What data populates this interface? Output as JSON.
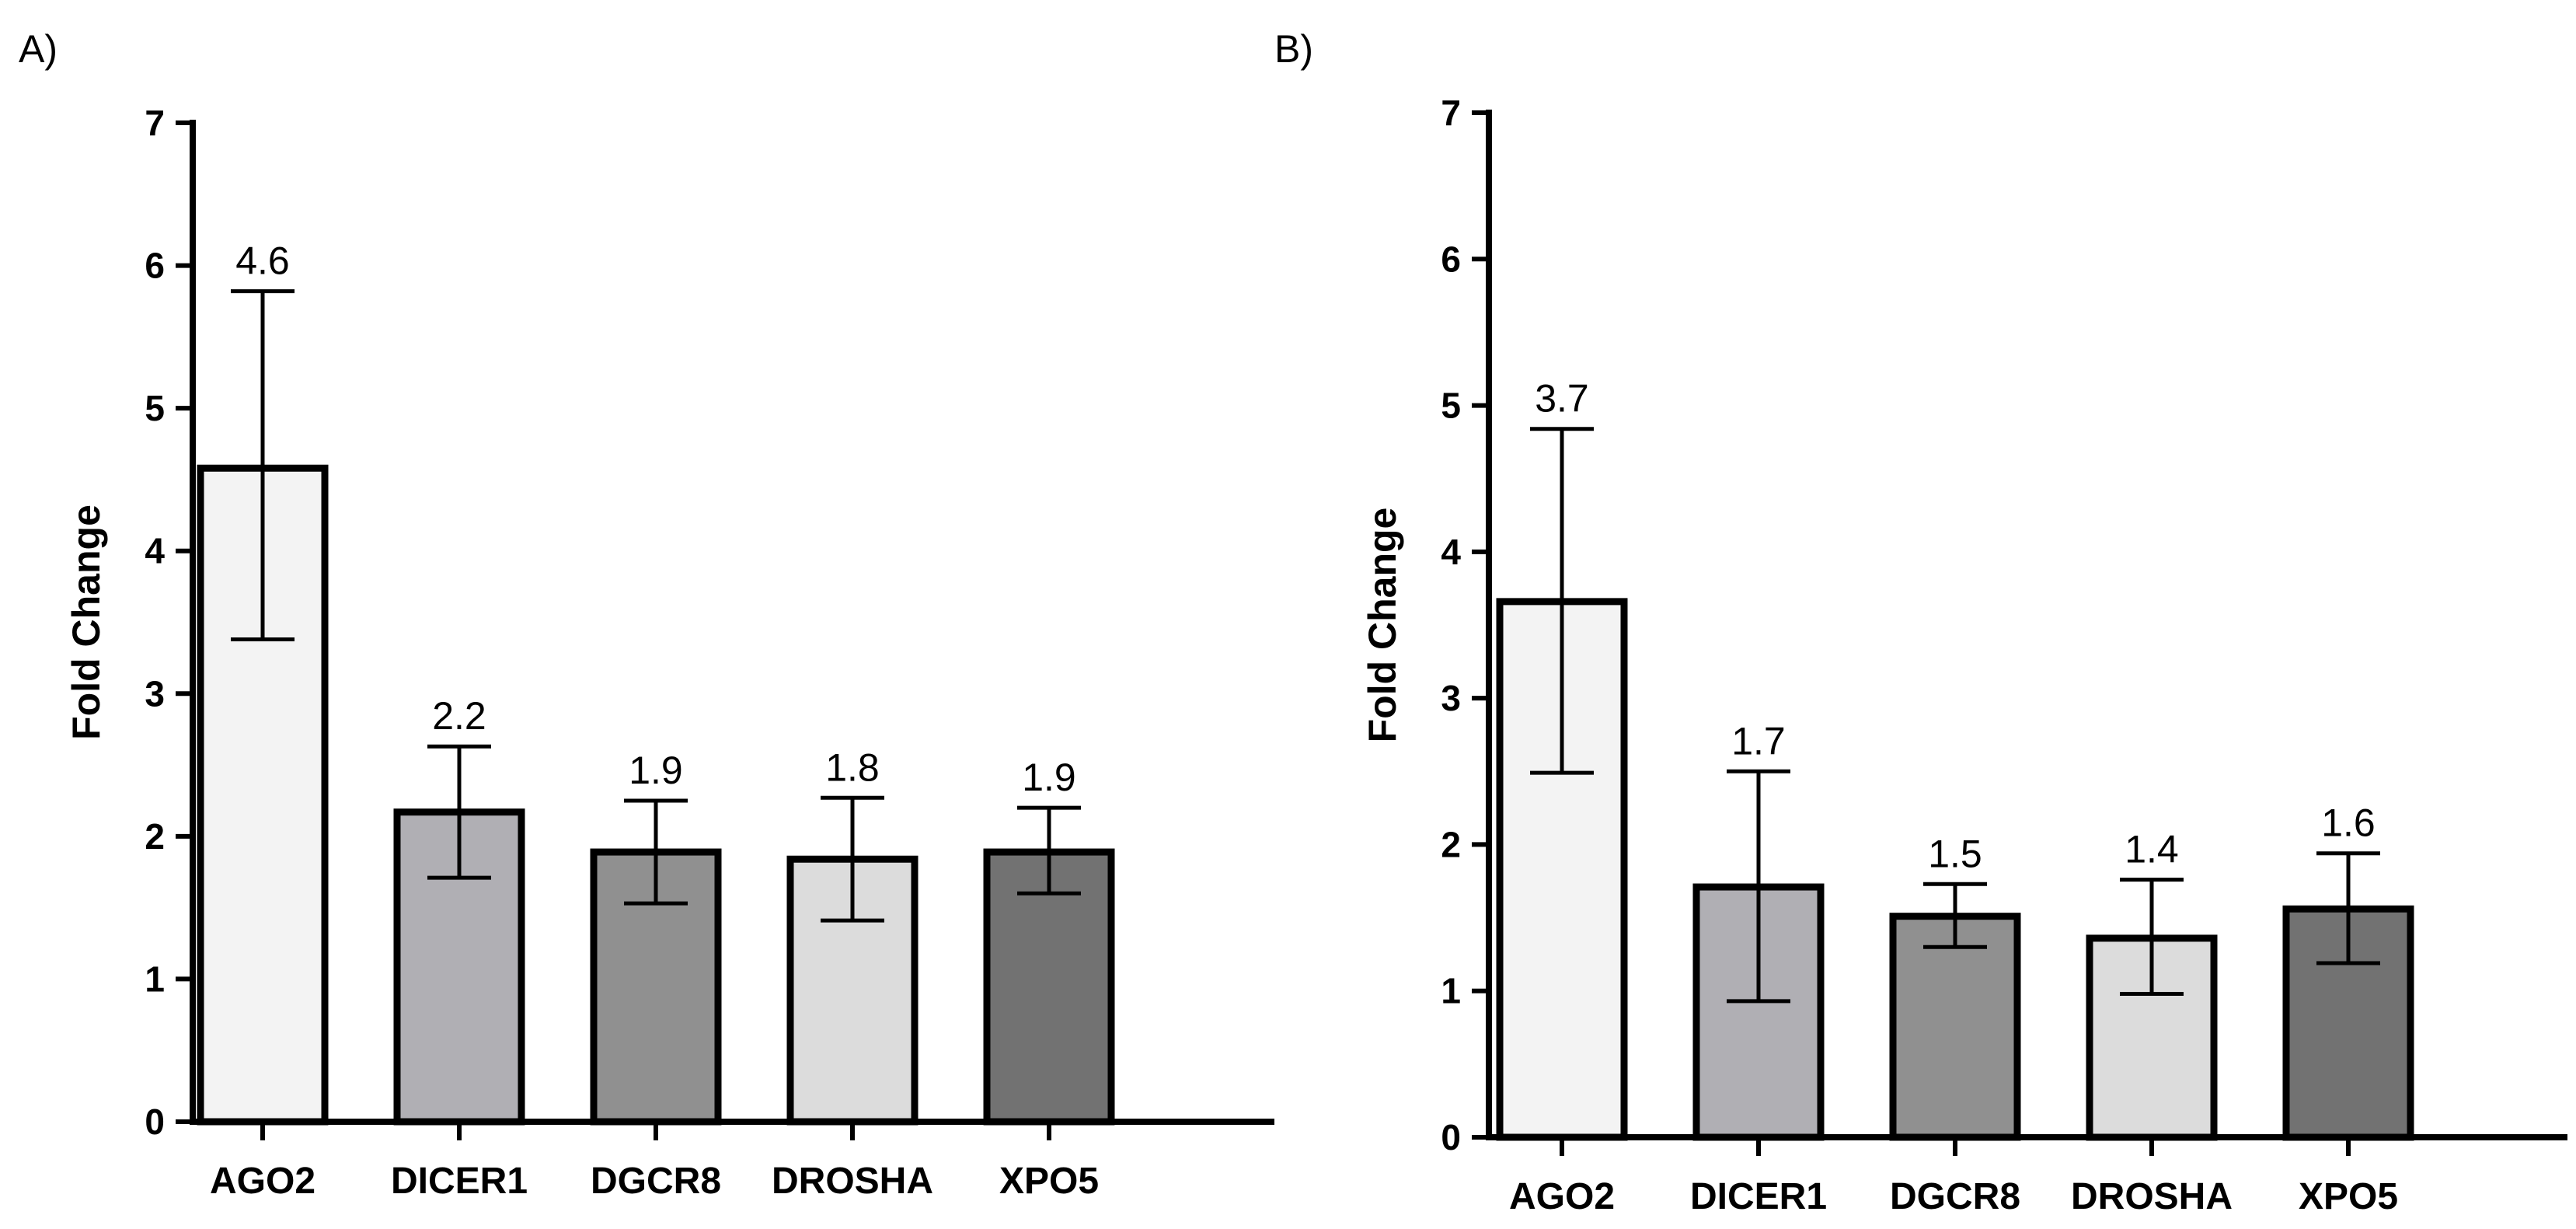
{
  "chart_data": [
    {
      "type": "bar",
      "panel_label": "A)",
      "title": "",
      "xlabel": "",
      "ylabel": "Fold Change",
      "ylim": [
        0,
        7
      ],
      "yticks": [
        "0",
        "1",
        "2",
        "3",
        "4",
        "5",
        "6",
        "7"
      ],
      "grid": false,
      "categories": [
        "AGO2",
        "DICER1",
        "DGCR8",
        "DROSHA",
        "XPO5"
      ],
      "values": [
        4.58,
        2.17,
        1.89,
        1.84,
        1.89
      ],
      "error_low": [
        3.38,
        1.71,
        1.53,
        1.41,
        1.6
      ],
      "error_high": [
        5.82,
        2.63,
        2.25,
        2.27,
        2.2
      ],
      "data_labels": [
        "4.6",
        "2.2",
        "1.9",
        "1.8",
        "1.9"
      ],
      "bar_colors": [
        "#f3f3f3",
        "#b0afb4",
        "#909090",
        "#dcdcdc",
        "#727272"
      ]
    },
    {
      "type": "bar",
      "panel_label": "B)",
      "title": "",
      "xlabel": "",
      "ylabel": "Fold Change",
      "ylim": [
        0,
        7
      ],
      "yticks": [
        "0",
        "1",
        "2",
        "3",
        "4",
        "5",
        "6",
        "7"
      ],
      "grid": false,
      "categories": [
        "AGO2",
        "DICER1",
        "DGCR8",
        "DROSHA",
        "XPO5"
      ],
      "values": [
        3.66,
        1.71,
        1.51,
        1.36,
        1.56
      ],
      "error_low": [
        2.49,
        0.93,
        1.3,
        0.98,
        1.19
      ],
      "error_high": [
        4.84,
        2.5,
        1.73,
        1.76,
        1.94
      ],
      "data_labels": [
        "3.7",
        "1.7",
        "1.5",
        "1.4",
        "1.6"
      ],
      "bar_colors": [
        "#f3f3f3",
        "#b0afb4",
        "#909090",
        "#dcdcdc",
        "#727272"
      ]
    }
  ]
}
